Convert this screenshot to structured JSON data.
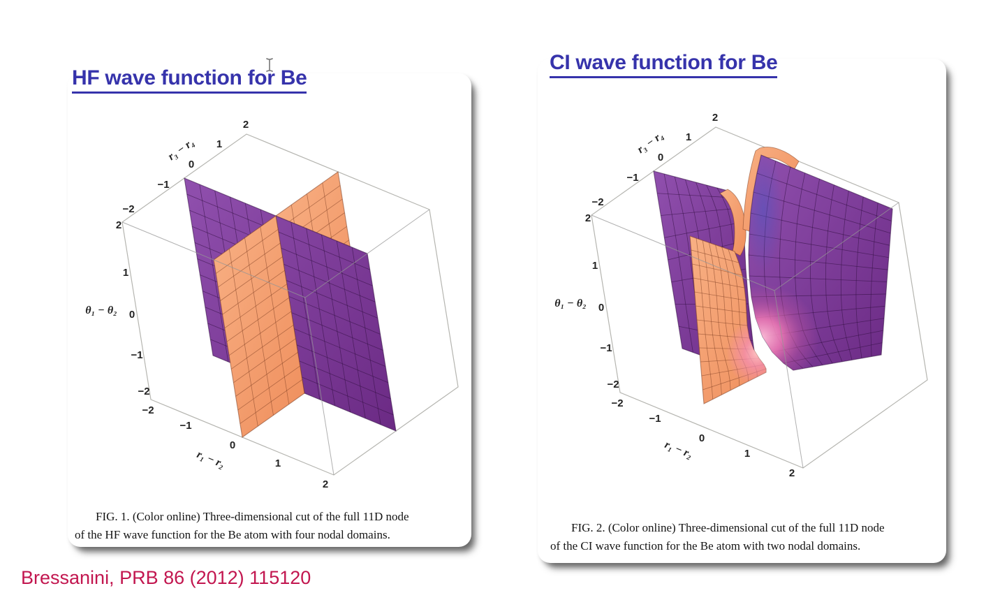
{
  "slide": {
    "citation": "Bressanini, PRB 86 (2012) 115120"
  },
  "panels": {
    "hf": {
      "title": "HF wave function for Be",
      "caption_line1": "FIG. 1. (Color online) Three-dimensional cut of the full 11D node",
      "caption_line2": "of the HF wave function for the Be atom with four nodal domains."
    },
    "ci": {
      "title": "CI wave function for Be",
      "caption_line1": "FIG. 2. (Color online) Three-dimensional cut of the full 11D node",
      "caption_line2": "of the CI wave function for the Be atom with two nodal domains."
    }
  },
  "colors": {
    "title_blue": "#3633ab",
    "citation_red": "#c2164f",
    "surface_purple": "#7b3595",
    "surface_orange": "#f39a6d",
    "pink_transition": "#f07ab4",
    "box_line": "#b5b5b0"
  },
  "chart_data": [
    {
      "type": "surface3d",
      "title": "FIG. 1 — node of the HF wave function for the Be atom",
      "nodal_domains": 4,
      "description": "Two flat perpendicular planes (r1−r2 = 0 and r3−r4 = 0) intersecting inside a [−2,2]^3 box",
      "axes": {
        "x": {
          "label": "r₁ − r₂",
          "range": [
            -2,
            2
          ],
          "ticks": [
            "−2",
            "−1",
            "0",
            "1",
            "2"
          ]
        },
        "y": {
          "label": "r₃ − r₄",
          "range": [
            -2,
            2
          ],
          "ticks": [
            "2",
            "1",
            "0",
            "−1",
            "−2"
          ]
        },
        "z": {
          "label": "θ₁ − θ₂",
          "range": [
            -2,
            2
          ],
          "ticks": [
            "2",
            "1",
            "0",
            "−1",
            "−2"
          ]
        }
      },
      "surfaces": [
        {
          "name": "plane r1 − r2 = 0",
          "color": "#f39a6d"
        },
        {
          "name": "plane r3 − r4 = 0",
          "color": "#7b3595"
        }
      ],
      "mesh": true
    },
    {
      "type": "surface3d",
      "title": "FIG. 2 — node of the CI wave function for the Be atom",
      "nodal_domains": 2,
      "description": "The two planes open into two curved avoided-crossing sheets with a pink transition region near the center",
      "axes": {
        "x": {
          "label": "r₁ − r₂",
          "range": [
            -2,
            2
          ],
          "ticks": [
            "−2",
            "−1",
            "0",
            "1",
            "2"
          ]
        },
        "y": {
          "label": "r₃ − r₄",
          "range": [
            -2,
            2
          ],
          "ticks": [
            "2",
            "1",
            "0",
            "−1",
            "−2"
          ]
        },
        "z": {
          "label": "θ₁ − θ₂",
          "range": [
            -2,
            2
          ],
          "ticks": [
            "2",
            "1",
            "0",
            "−1",
            "−2"
          ]
        }
      },
      "surfaces": [
        {
          "name": "left curved sheet",
          "color": "#f39a6d"
        },
        {
          "name": "right curved sheet",
          "color": "#7b3595"
        }
      ],
      "mesh": true
    }
  ]
}
